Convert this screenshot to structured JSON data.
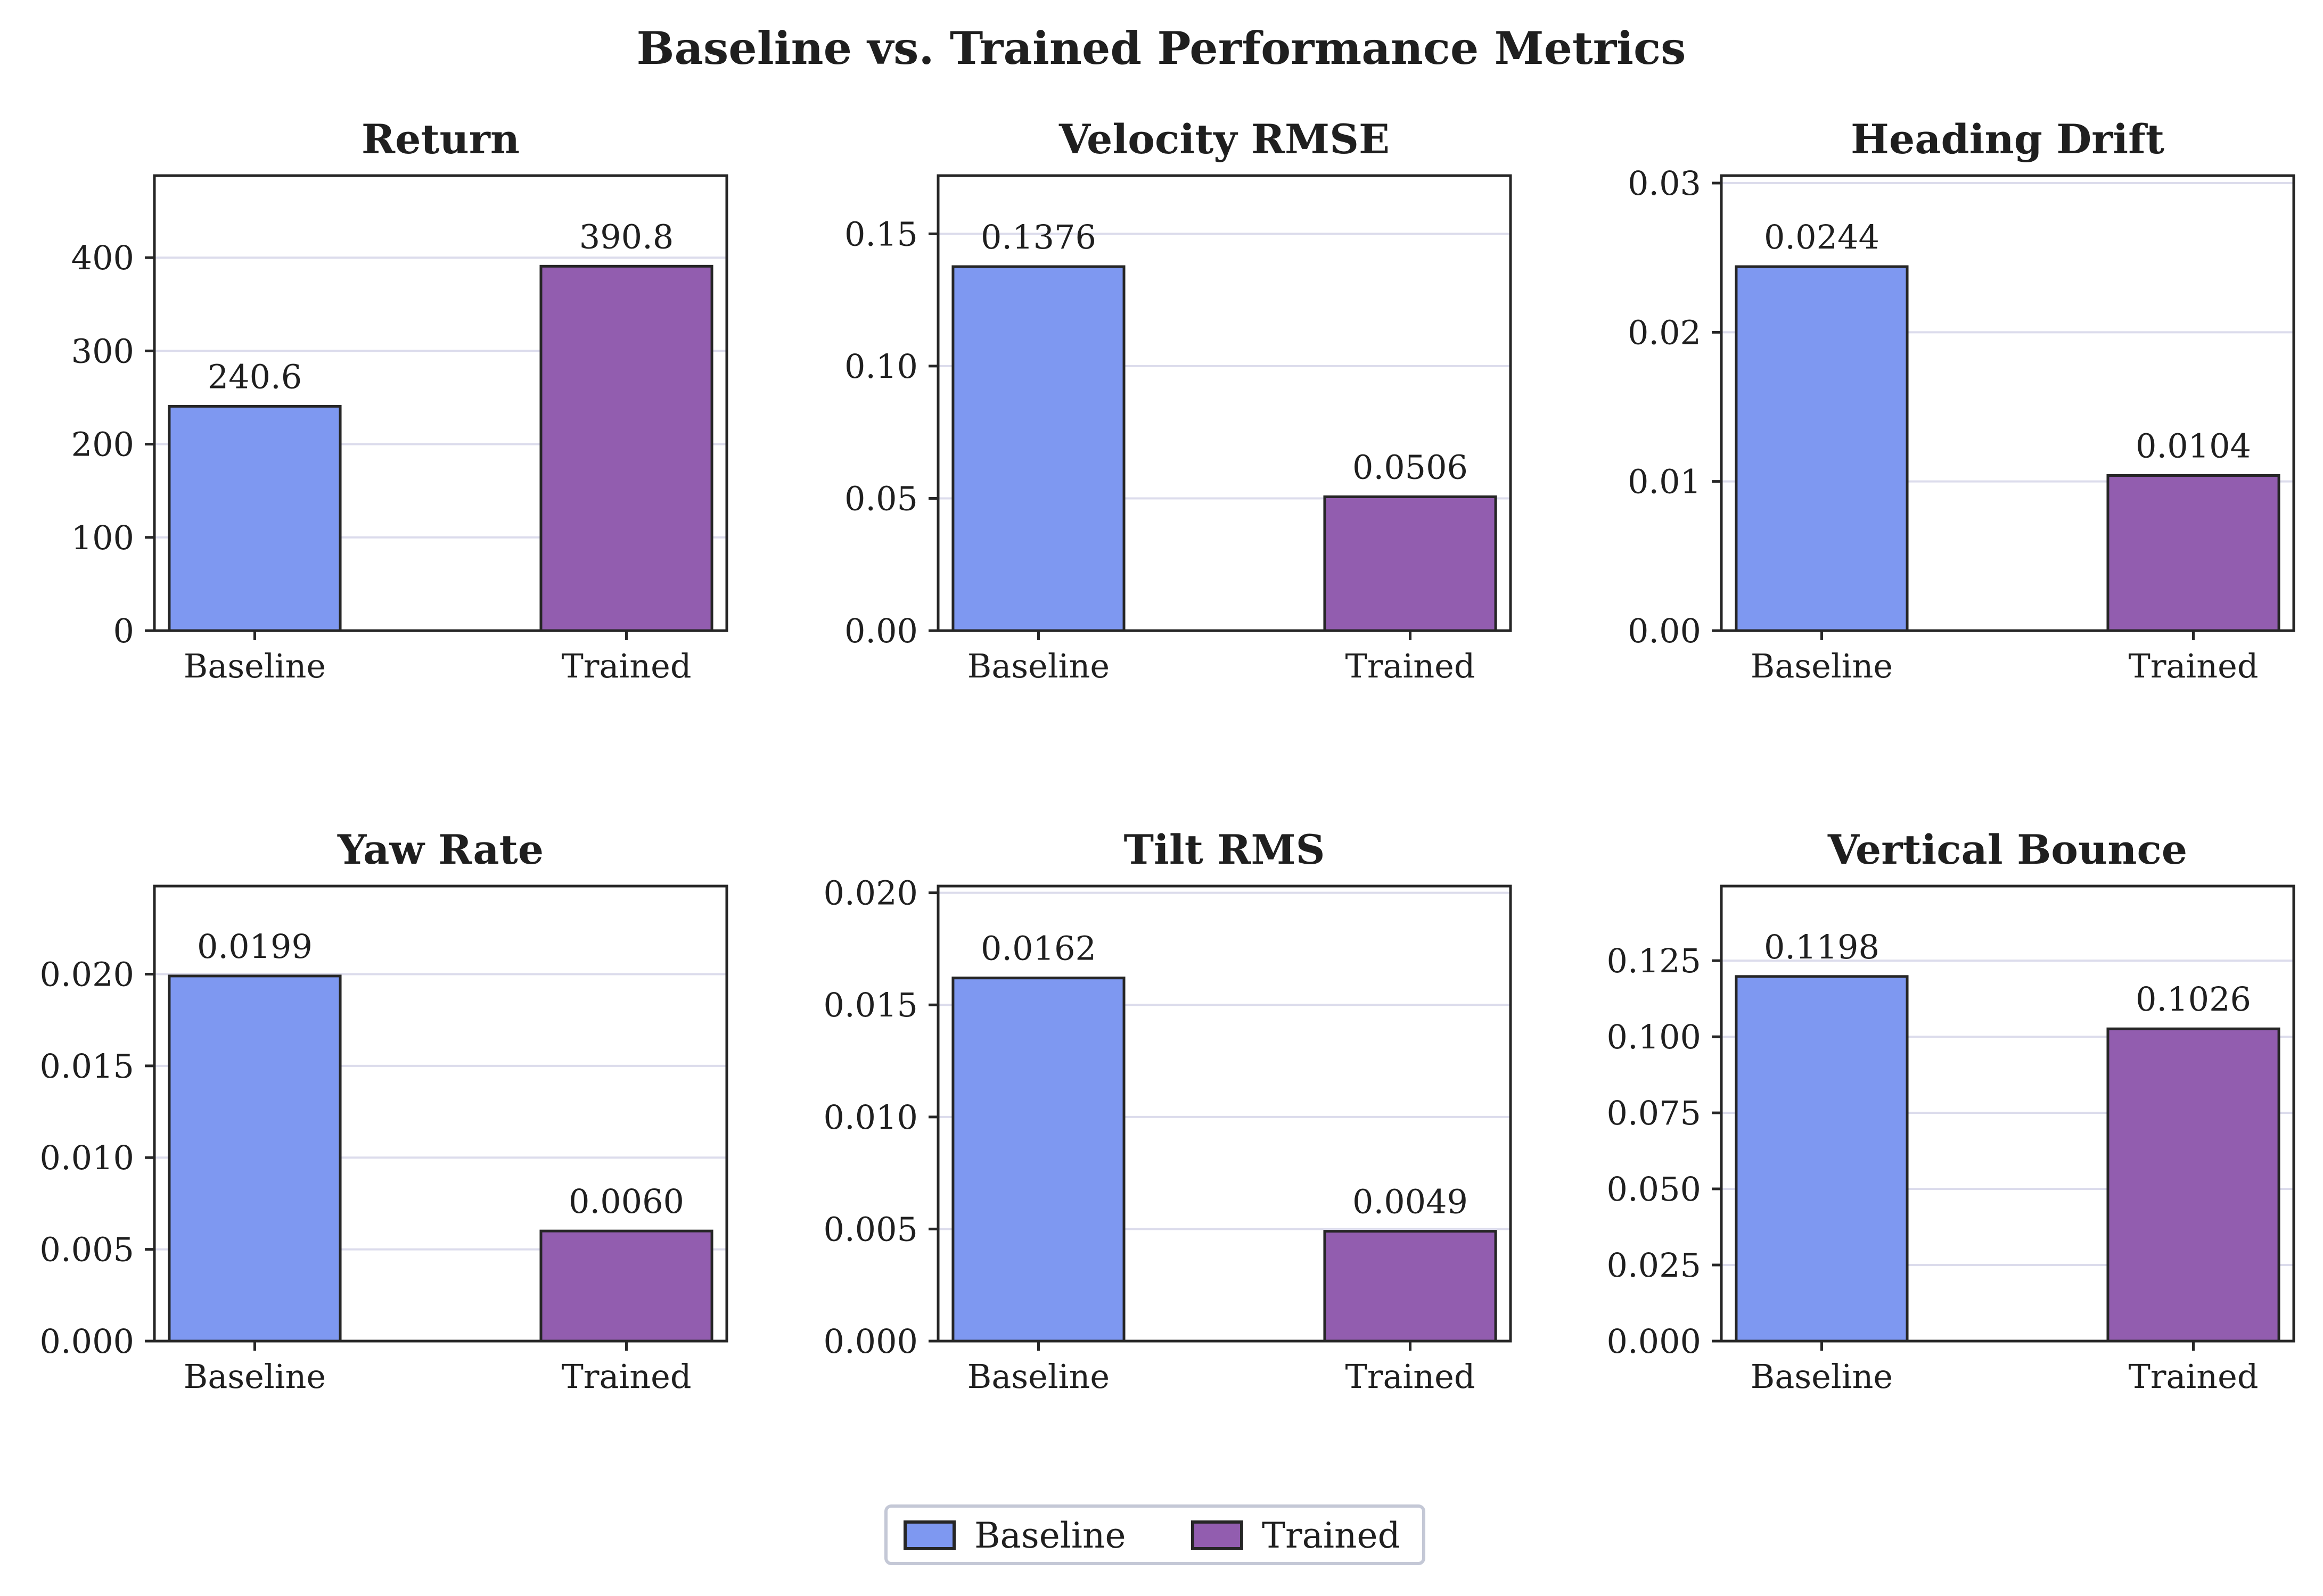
{
  "chart_data": {
    "title": "Baseline vs. Trained Performance Metrics",
    "type": "bar",
    "legend": {
      "placement": "bottom-center",
      "entries": [
        {
          "name": "Baseline",
          "color": "#7e98f1"
        },
        {
          "name": "Trained",
          "color": "#925daf"
        }
      ]
    },
    "grid": "horizontal",
    "panels": [
      {
        "title": "Return",
        "categories": [
          "Baseline",
          "Trained"
        ],
        "values": [
          240.6,
          390.8
        ],
        "value_labels": [
          "240.6",
          "390.8"
        ],
        "ylim": [
          0,
          488
        ],
        "yticks": [
          0,
          100,
          200,
          300,
          400
        ],
        "ytick_labels": [
          "0",
          "100",
          "200",
          "300",
          "400"
        ]
      },
      {
        "title": "Velocity RMSE",
        "categories": [
          "Baseline",
          "Trained"
        ],
        "values": [
          0.1376,
          0.0506
        ],
        "value_labels": [
          "0.1376",
          "0.0506"
        ],
        "ylim": [
          0,
          0.172
        ],
        "yticks": [
          0,
          0.05,
          0.1,
          0.15
        ],
        "ytick_labels": [
          "0.00",
          "0.05",
          "0.10",
          "0.15"
        ]
      },
      {
        "title": "Heading Drift",
        "categories": [
          "Baseline",
          "Trained"
        ],
        "values": [
          0.0244,
          0.0104
        ],
        "value_labels": [
          "0.0244",
          "0.0104"
        ],
        "ylim": [
          0,
          0.0305
        ],
        "yticks": [
          0,
          0.01,
          0.02,
          0.03
        ],
        "ytick_labels": [
          "0.00",
          "0.01",
          "0.02",
          "0.03"
        ]
      },
      {
        "title": "Yaw Rate",
        "categories": [
          "Baseline",
          "Trained"
        ],
        "values": [
          0.0199,
          0.006
        ],
        "value_labels": [
          "0.0199",
          "0.0060"
        ],
        "ylim": [
          0,
          0.0248
        ],
        "yticks": [
          0,
          0.005,
          0.01,
          0.015,
          0.02
        ],
        "ytick_labels": [
          "0.000",
          "0.005",
          "0.010",
          "0.015",
          "0.020"
        ]
      },
      {
        "title": "Tilt RMS",
        "categories": [
          "Baseline",
          "Trained"
        ],
        "values": [
          0.0162,
          0.0049
        ],
        "value_labels": [
          "0.0162",
          "0.0049"
        ],
        "ylim": [
          0,
          0.0203
        ],
        "yticks": [
          0,
          0.005,
          0.01,
          0.015,
          0.02
        ],
        "ytick_labels": [
          "0.000",
          "0.005",
          "0.010",
          "0.015",
          "0.020"
        ]
      },
      {
        "title": "Vertical Bounce",
        "categories": [
          "Baseline",
          "Trained"
        ],
        "values": [
          0.1198,
          0.1026
        ],
        "value_labels": [
          "0.1198",
          "0.1026"
        ],
        "ylim": [
          0,
          0.1495
        ],
        "yticks": [
          0,
          0.025,
          0.05,
          0.075,
          0.1,
          0.125
        ],
        "ytick_labels": [
          "0.000",
          "0.025",
          "0.050",
          "0.075",
          "0.100",
          "0.125"
        ]
      }
    ]
  }
}
